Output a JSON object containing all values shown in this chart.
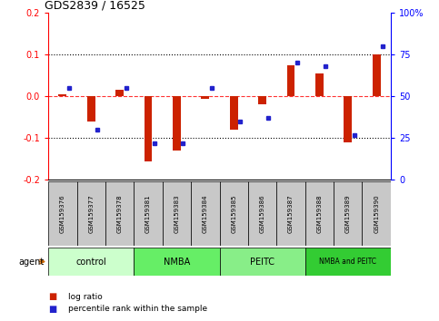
{
  "title": "GDS2839 / 16525",
  "samples": [
    "GSM159376",
    "GSM159377",
    "GSM159378",
    "GSM159381",
    "GSM159383",
    "GSM159384",
    "GSM159385",
    "GSM159386",
    "GSM159387",
    "GSM159388",
    "GSM159389",
    "GSM159390"
  ],
  "log_ratio": [
    0.005,
    -0.06,
    0.015,
    -0.155,
    -0.13,
    -0.005,
    -0.08,
    -0.02,
    0.075,
    0.055,
    -0.11,
    0.1
  ],
  "percentile_rank": [
    55,
    30,
    55,
    22,
    22,
    55,
    35,
    37,
    70,
    68,
    27,
    80
  ],
  "groups": [
    {
      "label": "control",
      "start": 0,
      "end": 3,
      "color": "#ccffcc"
    },
    {
      "label": "NMBA",
      "start": 3,
      "end": 6,
      "color": "#66ee66"
    },
    {
      "label": "PEITC",
      "start": 6,
      "end": 9,
      "color": "#88ee88"
    },
    {
      "label": "NMBA and PEITC",
      "start": 9,
      "end": 12,
      "color": "#33cc33"
    }
  ],
  "ylim": [
    -0.2,
    0.2
  ],
  "yticks_left": [
    -0.2,
    -0.1,
    0.0,
    0.1,
    0.2
  ],
  "yticks_right": [
    0,
    25,
    50,
    75,
    100
  ],
  "red_color": "#cc2200",
  "blue_color": "#2222cc",
  "sample_bg": "#c8c8c8",
  "agent_arrow_color": "#cc6600",
  "group_colors": [
    "#ccffcc",
    "#66ee66",
    "#88ee88",
    "#33cc33"
  ]
}
